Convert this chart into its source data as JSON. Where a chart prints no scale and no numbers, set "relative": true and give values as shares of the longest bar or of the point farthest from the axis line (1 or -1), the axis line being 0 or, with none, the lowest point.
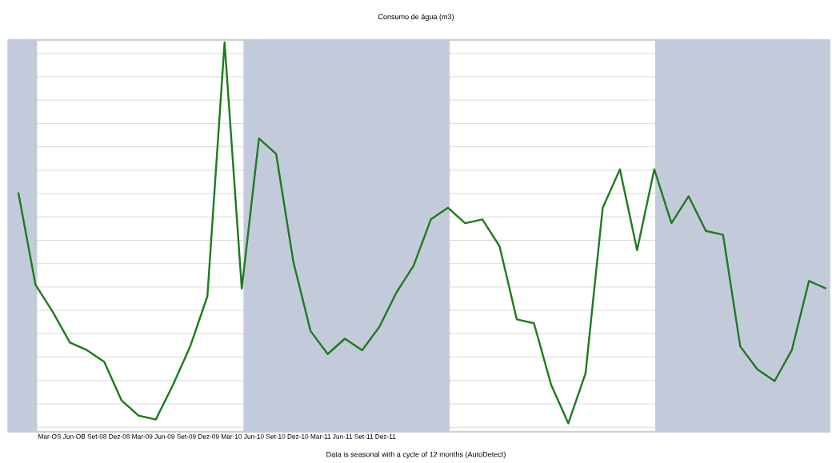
{
  "chart_data": {
    "type": "line",
    "title": "Consumo de água (m3)",
    "xlabel": "Mar-OS Jun-OB Set-08 Dez-08 Mar-09 Jun-09 Set-09 Dez-09 Mar-10 Jun-10 Set-10 Dez-10 Mar-11 Jun-11 Set-11 Dez-11",
    "annotations": [
      "Data is seasonal with a cycle of 12 months (AutoDetect)"
    ],
    "relative": true,
    "categories": [
      null,
      null,
      null,
      null,
      null,
      null,
      null,
      null,
      null,
      null,
      null,
      null,
      null,
      null,
      null,
      null,
      null,
      null,
      null,
      null,
      null,
      null,
      null,
      null,
      null,
      null,
      null,
      null,
      null,
      null,
      null,
      null,
      null,
      null,
      null,
      null,
      null,
      null,
      null,
      null,
      null,
      null,
      null,
      null,
      null,
      null,
      null,
      null
    ],
    "grid": "y",
    "series": [
      {
        "color": "#1e7a1e",
        "values": [
          0.61,
          0.37,
          0.3,
          0.22,
          0.2,
          0.17,
          0.07,
          0.03,
          0.02,
          0.11,
          0.21,
          0.34,
          1.0,
          0.36,
          0.75,
          0.71,
          0.43,
          0.25,
          0.19,
          0.23,
          0.2,
          0.26,
          0.35,
          0.42,
          0.54,
          0.57,
          0.53,
          0.54,
          0.47,
          0.28,
          0.27,
          0.11,
          0.01,
          0.14,
          0.57,
          0.67,
          0.46,
          0.67,
          0.53,
          0.6,
          0.51,
          0.5,
          0.21,
          0.15,
          0.12,
          0.2,
          0.38,
          0.36
        ]
      }
    ]
  }
}
